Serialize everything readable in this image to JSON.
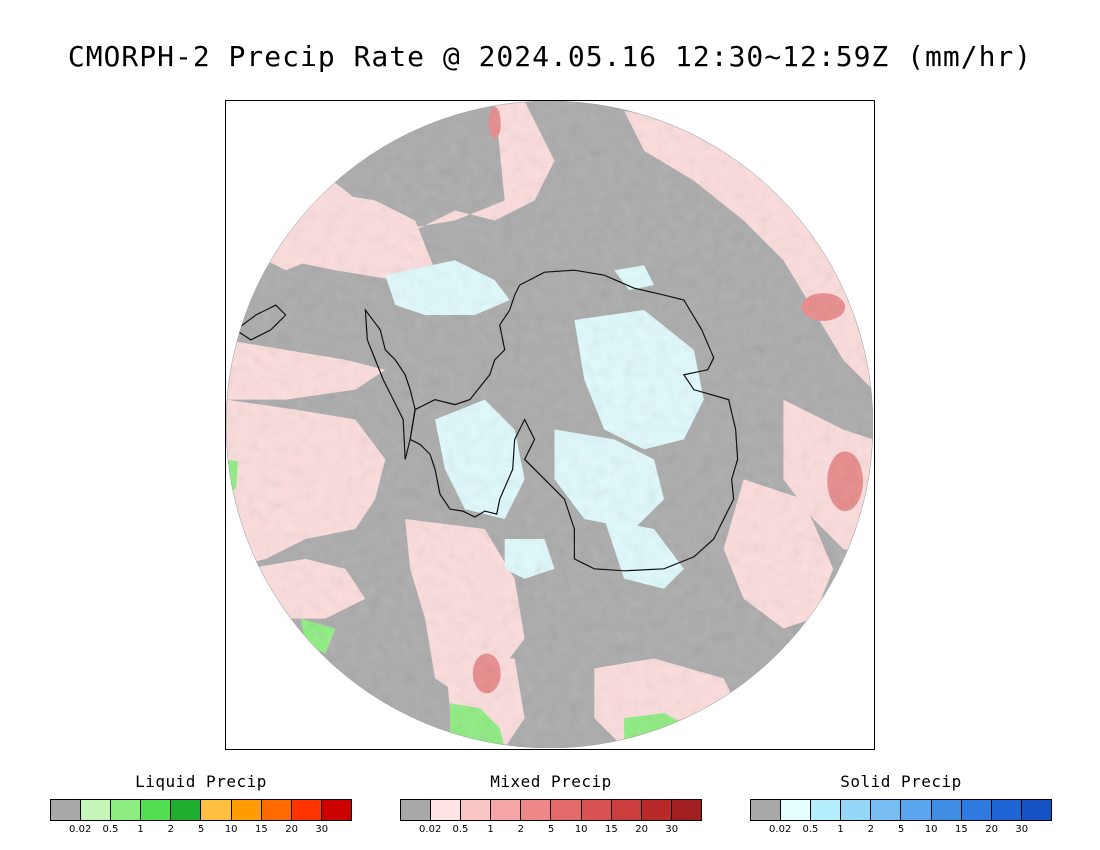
{
  "title": "CMORPH-2 Precip Rate @ 2024.05.16 12:30~12:59Z (mm/hr)",
  "map": {
    "projection": "south-polar-stereographic",
    "background_color": "#aaaaaa",
    "coastline_color": "#000000"
  },
  "legends": [
    {
      "title": "Liquid Precip",
      "colors": [
        "#a9a9a9",
        "#c6f5b9",
        "#8ded80",
        "#52e052",
        "#1fae2e",
        "#ffbf40",
        "#ff9d00",
        "#ff6a00",
        "#ff3300",
        "#cc0000"
      ],
      "ticks": [
        "0.02",
        "0.5",
        "1",
        "2",
        "5",
        "10",
        "15",
        "20",
        "30"
      ]
    },
    {
      "title": "Mixed Precip",
      "colors": [
        "#a9a9a9",
        "#ffe4e4",
        "#fbc6c6",
        "#f5a5a5",
        "#ee8888",
        "#e46a6a",
        "#d95252",
        "#cc3d3d",
        "#b82a2a",
        "#a11f1f"
      ],
      "ticks": [
        "0.02",
        "0.5",
        "1",
        "2",
        "5",
        "10",
        "15",
        "20",
        "30"
      ]
    },
    {
      "title": "Solid Precip",
      "colors": [
        "#a9a9a9",
        "#e2feff",
        "#b2eefc",
        "#94d5f8",
        "#78bdf4",
        "#5ba4ee",
        "#408ee6",
        "#2f7ae0",
        "#1f64d4",
        "#1452c6"
      ],
      "ticks": [
        "0.02",
        "0.5",
        "1",
        "2",
        "5",
        "10",
        "15",
        "20",
        "30"
      ]
    }
  ]
}
